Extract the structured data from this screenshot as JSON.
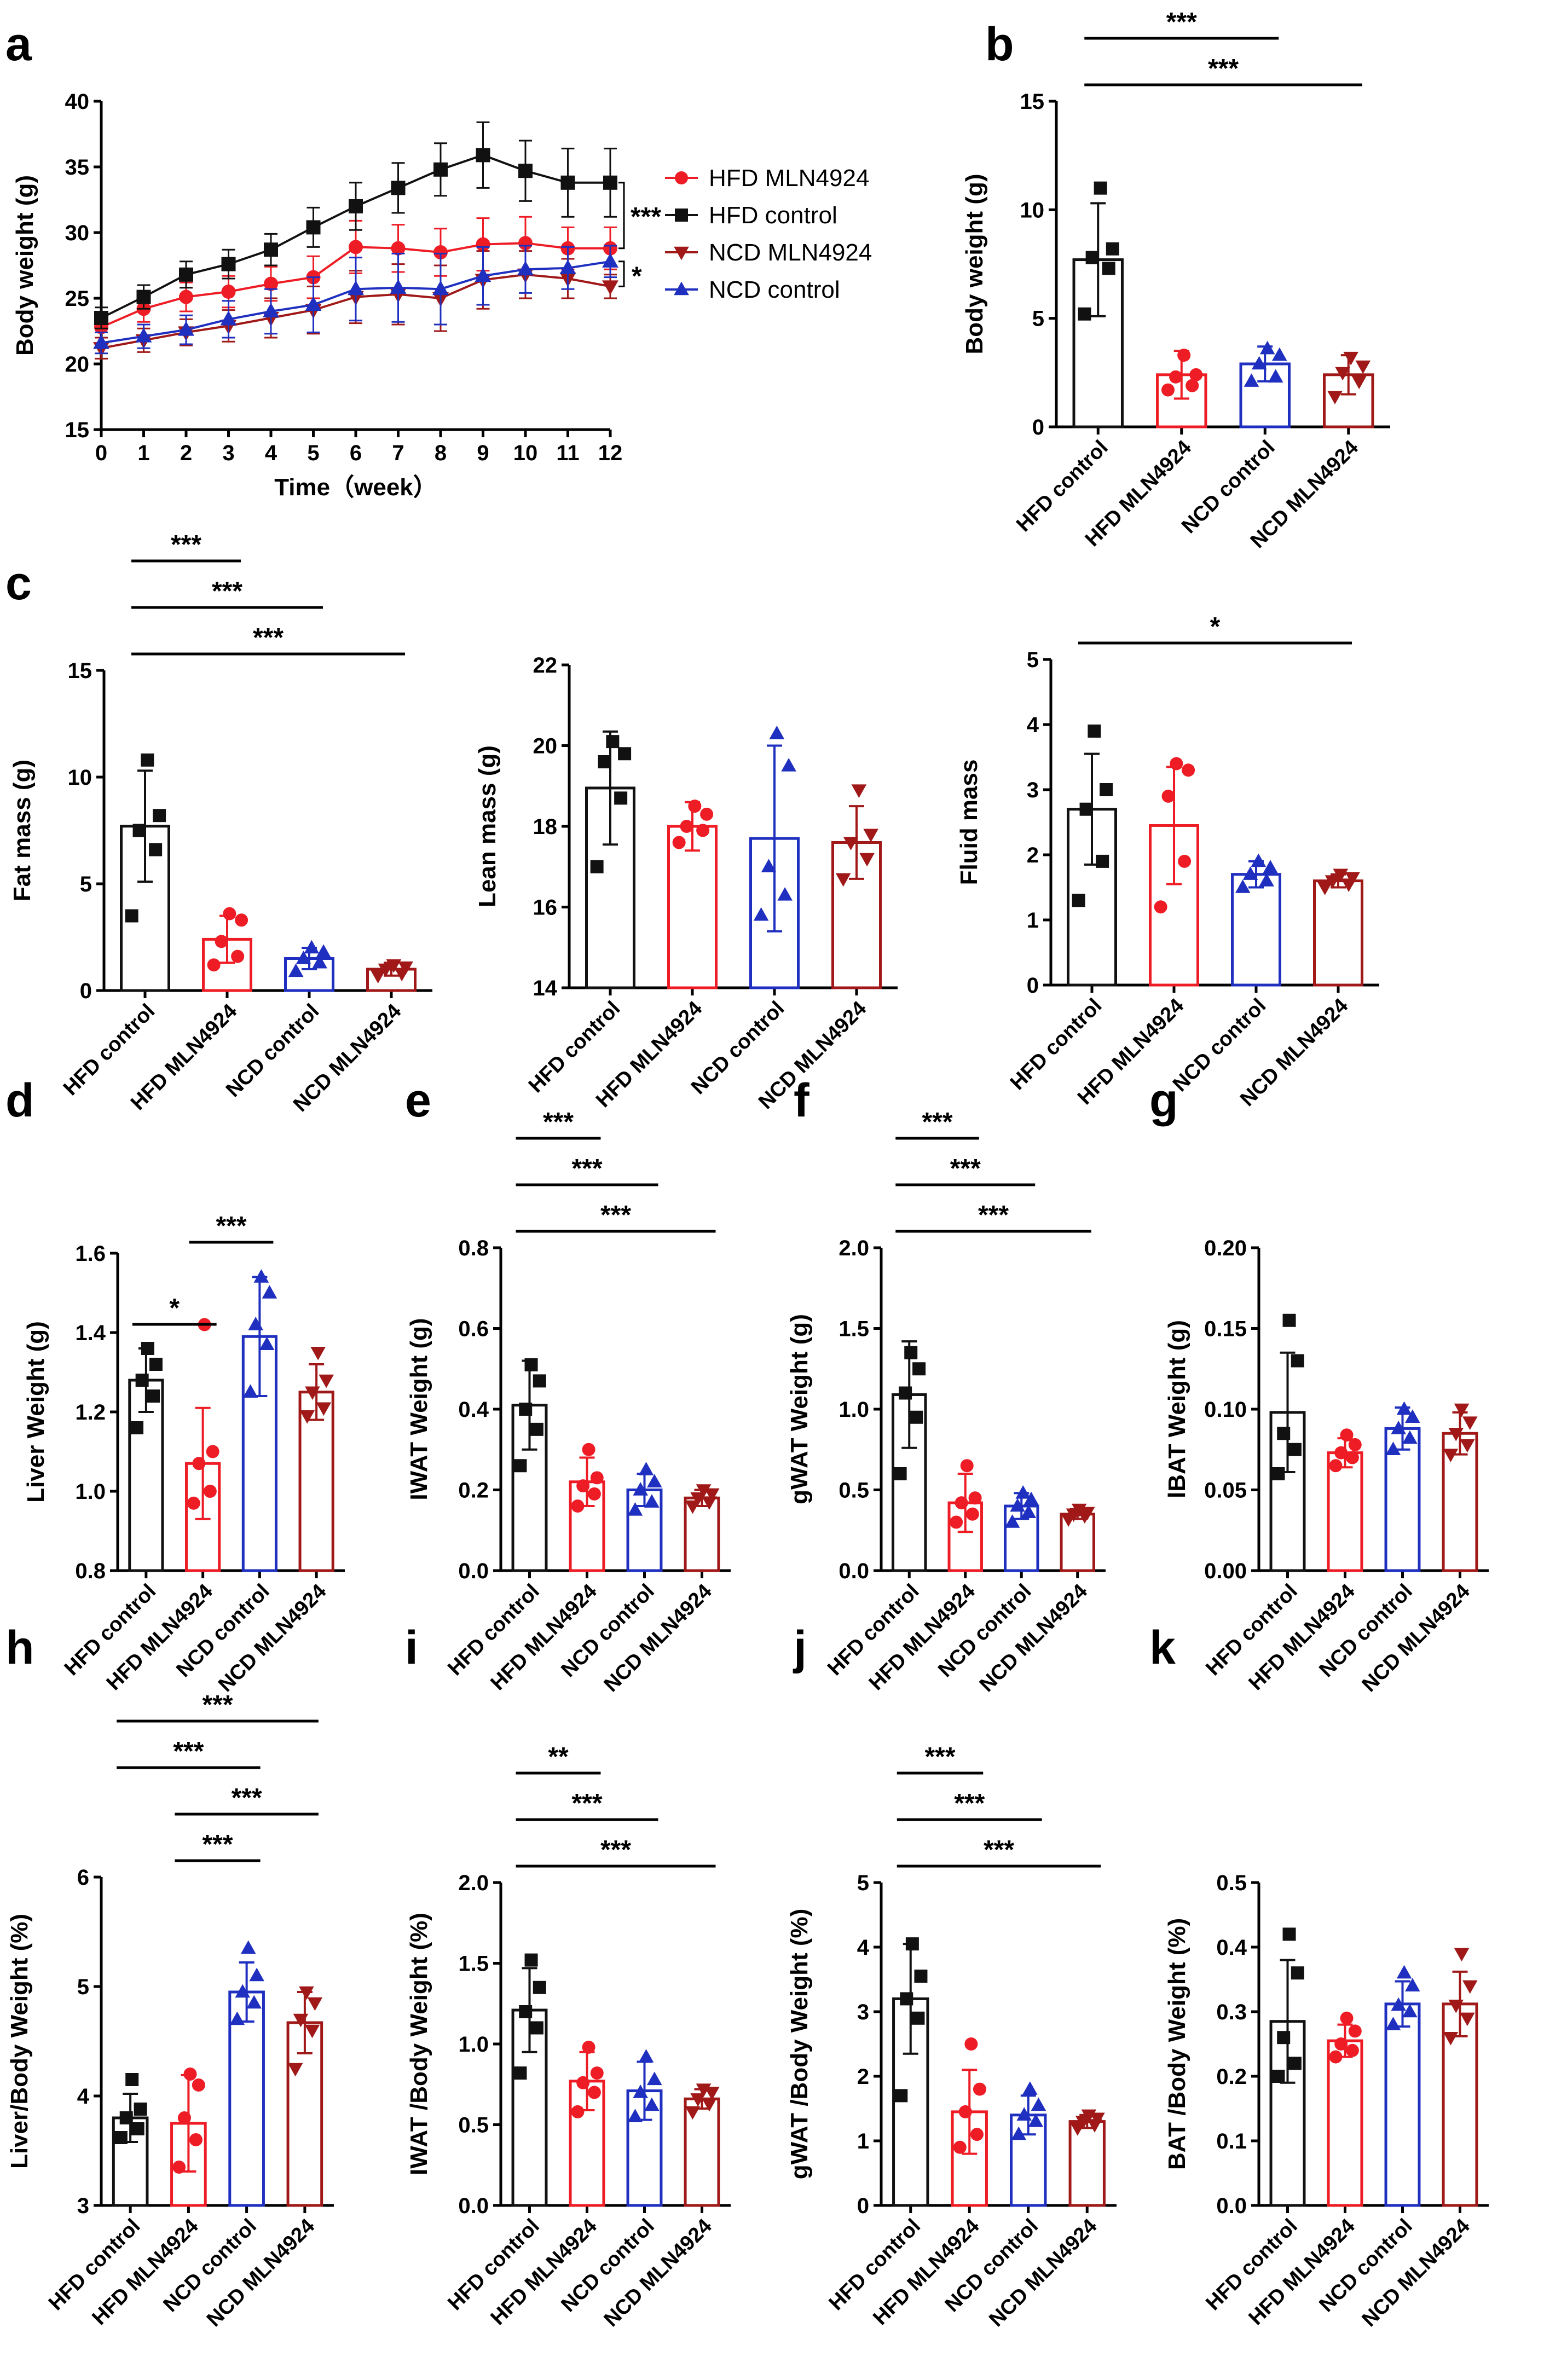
{
  "colors": {
    "HFD control": "#111111",
    "HFD MLN4924": "#ee1c25",
    "NCD control": "#1f2fbf",
    "NCD MLN4924": "#a01818"
  },
  "chart_data": [
    {
      "panel": "a",
      "type": "line",
      "xlabel": "Time（week）",
      "ylabel": "Body weight (g)",
      "x": [
        0,
        1,
        2,
        3,
        4,
        5,
        6,
        7,
        8,
        9,
        10,
        11,
        12
      ],
      "xlim": [
        0,
        12
      ],
      "ylim": [
        15,
        40
      ],
      "yticks": [
        15,
        20,
        25,
        30,
        35,
        40
      ],
      "legend_position": "right",
      "series": [
        {
          "name": "HFD MLN4924",
          "marker": "circle",
          "values": [
            22.8,
            24.2,
            25.1,
            25.5,
            26.1,
            26.6,
            28.9,
            28.8,
            28.5,
            29.1,
            29.2,
            28.8,
            28.8
          ],
          "err": [
            0.8,
            1.0,
            1.1,
            1.2,
            1.3,
            1.6,
            2.0,
            1.8,
            1.8,
            2.0,
            2.0,
            1.6,
            1.6
          ]
        },
        {
          "name": "HFD control",
          "marker": "square",
          "values": [
            23.5,
            25.1,
            26.8,
            27.6,
            28.7,
            30.4,
            32.0,
            33.4,
            34.8,
            35.9,
            34.7,
            33.8,
            33.8
          ],
          "err": [
            0.8,
            0.9,
            1.0,
            1.1,
            1.2,
            1.5,
            1.8,
            1.9,
            2.0,
            2.5,
            2.3,
            2.6,
            2.6
          ]
        },
        {
          "name": "NCD MLN4924",
          "marker": "triangle-down",
          "values": [
            21.2,
            21.8,
            22.4,
            22.9,
            23.5,
            24.1,
            25.1,
            25.3,
            25.0,
            26.4,
            26.8,
            26.5,
            25.9
          ],
          "err": [
            0.8,
            0.9,
            1.0,
            1.2,
            1.5,
            1.8,
            2.0,
            2.3,
            2.5,
            2.2,
            1.8,
            1.5,
            0.9
          ]
        },
        {
          "name": "NCD control",
          "marker": "triangle-up",
          "values": [
            21.6,
            22.1,
            22.6,
            23.4,
            24.0,
            24.5,
            25.7,
            25.8,
            25.7,
            26.7,
            27.2,
            27.3,
            27.8
          ],
          "err": [
            0.8,
            0.9,
            1.1,
            1.4,
            1.7,
            2.1,
            2.4,
            2.6,
            2.7,
            2.2,
            1.8,
            1.6,
            1.2
          ]
        }
      ],
      "annotations": [
        "***",
        "*"
      ]
    },
    {
      "panel": "b",
      "type": "bar",
      "ylabel": "Body weight (g)",
      "categories": [
        "HFD control",
        "HFD MLN4924",
        "NCD control",
        "NCD MLN4924"
      ],
      "ylim": [
        0,
        15
      ],
      "yticks": [
        0,
        5,
        10,
        15
      ],
      "values": [
        7.7,
        2.4,
        2.9,
        2.4
      ],
      "err": [
        2.6,
        1.1,
        0.8,
        0.9
      ],
      "points": [
        [
          5.2,
          7.3,
          7.8,
          8.2,
          11.0
        ],
        [
          1.7,
          1.9,
          2.3,
          2.4,
          3.3
        ],
        [
          2.1,
          2.3,
          2.9,
          3.3,
          3.6
        ],
        [
          1.4,
          2.1,
          2.5,
          2.8,
          3.2
        ]
      ],
      "significance": [
        {
          "pair": [
            0,
            1
          ],
          "label": "***"
        },
        {
          "pair": [
            0,
            2
          ],
          "label": "***"
        },
        {
          "pair": [
            0,
            3
          ],
          "label": "***"
        }
      ]
    },
    {
      "panel": "c1",
      "type": "bar",
      "ylabel": "Fat mass (g)",
      "categories": [
        "HFD control",
        "HFD MLN4924",
        "NCD control",
        "NCD MLN4924"
      ],
      "ylim": [
        0,
        15
      ],
      "yticks": [
        0,
        5,
        10,
        15
      ],
      "values": [
        7.7,
        2.4,
        1.5,
        1.0
      ],
      "err": [
        2.6,
        1.1,
        0.5,
        0.3
      ],
      "points": [
        [
          3.5,
          6.6,
          7.5,
          8.2,
          10.8
        ],
        [
          1.2,
          1.6,
          2.3,
          3.3,
          3.6
        ],
        [
          0.9,
          1.3,
          1.5,
          1.8,
          2.0
        ],
        [
          0.7,
          0.8,
          1.0,
          1.1,
          1.2
        ]
      ],
      "significance": [
        {
          "pair": [
            0,
            1
          ],
          "label": "***"
        },
        {
          "pair": [
            0,
            2
          ],
          "label": "***"
        },
        {
          "pair": [
            0,
            3
          ],
          "label": "***"
        }
      ]
    },
    {
      "panel": "c2",
      "type": "bar",
      "ylabel": "Lean mass (g)",
      "categories": [
        "HFD control",
        "HFD MLN4924",
        "NCD control",
        "NCD MLN4924"
      ],
      "ylim": [
        14,
        22
      ],
      "yticks": [
        14,
        16,
        18,
        20,
        22
      ],
      "values": [
        18.95,
        18.0,
        17.7,
        17.6
      ],
      "err": [
        1.4,
        0.6,
        2.3,
        0.9
      ],
      "points": [
        [
          17.0,
          18.7,
          19.6,
          19.8,
          20.1
        ],
        [
          17.6,
          17.9,
          18.0,
          18.3,
          18.5
        ],
        [
          15.8,
          16.3,
          17.0,
          19.5,
          20.3
        ],
        [
          16.7,
          17.2,
          17.6,
          17.8,
          18.9
        ]
      ],
      "significance": []
    },
    {
      "panel": "c3",
      "type": "bar",
      "ylabel": "Fluid mass",
      "categories": [
        "HFD control",
        "HFD MLN4924",
        "NCD control",
        "NCD MLN4924"
      ],
      "ylim": [
        0,
        5
      ],
      "yticks": [
        0,
        1,
        2,
        3,
        4,
        5
      ],
      "values": [
        2.7,
        2.45,
        1.7,
        1.6
      ],
      "err": [
        0.85,
        0.9,
        0.2,
        0.1
      ],
      "points": [
        [
          1.3,
          1.9,
          2.7,
          3.0,
          3.9
        ],
        [
          1.2,
          1.9,
          2.9,
          3.3,
          3.4
        ],
        [
          1.5,
          1.6,
          1.7,
          1.8,
          1.9
        ],
        [
          1.5,
          1.55,
          1.6,
          1.65,
          1.7
        ]
      ],
      "significance": [
        {
          "pair": [
            0,
            3
          ],
          "label": "*"
        }
      ]
    },
    {
      "panel": "d",
      "type": "bar",
      "ylabel": "Liver Weight (g)",
      "categories": [
        "HFD control",
        "HFD MLN4924",
        "NCD control",
        "NCD MLN4924"
      ],
      "ylim": [
        0.8,
        1.6
      ],
      "yticks": [
        0.8,
        1.0,
        1.2,
        1.4,
        1.6
      ],
      "values": [
        1.28,
        1.07,
        1.39,
        1.25
      ],
      "err": [
        0.08,
        0.14,
        0.15,
        0.07
      ],
      "points": [
        [
          1.16,
          1.24,
          1.28,
          1.32,
          1.36
        ],
        [
          0.97,
          1.0,
          1.07,
          1.1,
          1.42
        ],
        [
          1.25,
          1.37,
          1.42,
          1.5,
          1.54
        ],
        [
          1.19,
          1.21,
          1.25,
          1.28,
          1.35
        ]
      ],
      "significance": [
        {
          "pair": [
            0,
            1
          ],
          "label": "*"
        },
        {
          "pair": [
            1,
            2
          ],
          "label": "***"
        }
      ]
    },
    {
      "panel": "e",
      "type": "bar",
      "ylabel": "IWAT Weight (g)",
      "categories": [
        "HFD control",
        "HFD MLN4924",
        "NCD control",
        "NCD MLN4924"
      ],
      "ylim": [
        0,
        0.8
      ],
      "yticks": [
        0.0,
        0.2,
        0.4,
        0.6,
        0.8
      ],
      "values": [
        0.41,
        0.22,
        0.2,
        0.18
      ],
      "err": [
        0.11,
        0.06,
        0.04,
        0.02
      ],
      "points": [
        [
          0.26,
          0.35,
          0.4,
          0.47,
          0.51
        ],
        [
          0.16,
          0.19,
          0.21,
          0.23,
          0.3
        ],
        [
          0.15,
          0.17,
          0.2,
          0.22,
          0.25
        ],
        [
          0.16,
          0.17,
          0.18,
          0.19,
          0.2
        ]
      ],
      "significance": [
        {
          "pair": [
            0,
            1
          ],
          "label": "***"
        },
        {
          "pair": [
            0,
            2
          ],
          "label": "***"
        },
        {
          "pair": [
            0,
            3
          ],
          "label": "***"
        }
      ]
    },
    {
      "panel": "f",
      "type": "bar",
      "ylabel": "gWAT Weight (g)",
      "categories": [
        "HFD control",
        "HFD MLN4924",
        "NCD control",
        "NCD MLN4924"
      ],
      "ylim": [
        0,
        2.0
      ],
      "yticks": [
        0.0,
        0.5,
        1.0,
        1.5,
        2.0
      ],
      "values": [
        1.09,
        0.42,
        0.4,
        0.35
      ],
      "err": [
        0.33,
        0.18,
        0.08,
        0.03
      ],
      "points": [
        [
          0.6,
          0.95,
          1.1,
          1.25,
          1.35
        ],
        [
          0.3,
          0.35,
          0.42,
          0.45,
          0.65
        ],
        [
          0.3,
          0.36,
          0.4,
          0.44,
          0.48
        ],
        [
          0.32,
          0.34,
          0.35,
          0.36,
          0.38
        ]
      ],
      "significance": [
        {
          "pair": [
            0,
            1
          ],
          "label": "***"
        },
        {
          "pair": [
            0,
            2
          ],
          "label": "***"
        },
        {
          "pair": [
            0,
            3
          ],
          "label": "***"
        }
      ]
    },
    {
      "panel": "g",
      "type": "bar",
      "ylabel": "lBAT Weight (g)",
      "categories": [
        "HFD control",
        "HFD MLN4924",
        "NCD control",
        "NCD MLN4924"
      ],
      "ylim": [
        0,
        0.2
      ],
      "yticks": [
        0.0,
        0.05,
        0.1,
        0.15,
        0.2
      ],
      "values": [
        0.098,
        0.073,
        0.088,
        0.085
      ],
      "err": [
        0.037,
        0.009,
        0.013,
        0.013
      ],
      "points": [
        [
          0.06,
          0.075,
          0.085,
          0.13,
          0.155
        ],
        [
          0.065,
          0.07,
          0.073,
          0.078,
          0.084
        ],
        [
          0.075,
          0.082,
          0.088,
          0.095,
          0.1
        ],
        [
          0.072,
          0.078,
          0.085,
          0.092,
          0.1
        ]
      ],
      "significance": []
    },
    {
      "panel": "h",
      "type": "bar",
      "ylabel": "Liver/Body Weight (%)",
      "categories": [
        "HFD control",
        "HFD MLN4924",
        "NCD control",
        "NCD MLN4924"
      ],
      "ylim": [
        3,
        6
      ],
      "yticks": [
        3,
        4,
        5,
        6
      ],
      "values": [
        3.8,
        3.75,
        4.95,
        4.67
      ],
      "err": [
        0.22,
        0.44,
        0.27,
        0.28
      ],
      "points": [
        [
          3.62,
          3.7,
          3.8,
          3.88,
          4.15
        ],
        [
          3.35,
          3.6,
          3.8,
          4.1,
          4.2
        ],
        [
          4.7,
          4.85,
          4.95,
          5.1,
          5.35
        ],
        [
          4.25,
          4.6,
          4.7,
          4.85,
          4.95
        ]
      ],
      "significance": [
        {
          "pair": [
            0,
            3
          ],
          "label": "***"
        },
        {
          "pair": [
            0,
            2
          ],
          "label": "***"
        },
        {
          "pair": [
            1,
            3
          ],
          "label": "***"
        },
        {
          "pair": [
            1,
            2
          ],
          "label": "***"
        }
      ]
    },
    {
      "panel": "i",
      "type": "bar",
      "ylabel": "IWAT /Body Weight (%)",
      "categories": [
        "HFD control",
        "HFD MLN4924",
        "NCD control",
        "NCD MLN4924"
      ],
      "ylim": [
        0,
        2.0
      ],
      "yticks": [
        0.0,
        0.5,
        1.0,
        1.5,
        2.0
      ],
      "values": [
        1.21,
        0.77,
        0.71,
        0.66
      ],
      "err": [
        0.26,
        0.18,
        0.18,
        0.06
      ],
      "points": [
        [
          0.82,
          1.1,
          1.2,
          1.35,
          1.52
        ],
        [
          0.58,
          0.7,
          0.76,
          0.82,
          0.98
        ],
        [
          0.55,
          0.62,
          0.7,
          0.78,
          0.92
        ],
        [
          0.58,
          0.63,
          0.66,
          0.7,
          0.72
        ]
      ],
      "significance": [
        {
          "pair": [
            0,
            1
          ],
          "label": "**"
        },
        {
          "pair": [
            0,
            2
          ],
          "label": "***"
        },
        {
          "pair": [
            0,
            3
          ],
          "label": "***"
        }
      ]
    },
    {
      "panel": "j",
      "type": "bar",
      "ylabel": "gWAT /Body Weight (%)",
      "categories": [
        "HFD control",
        "HFD MLN4924",
        "NCD control",
        "NCD MLN4924"
      ],
      "ylim": [
        0,
        5
      ],
      "yticks": [
        0,
        1,
        2,
        3,
        4,
        5
      ],
      "values": [
        3.2,
        1.45,
        1.4,
        1.3
      ],
      "err": [
        0.85,
        0.65,
        0.3,
        0.1
      ],
      "points": [
        [
          1.7,
          2.9,
          3.2,
          3.55,
          4.05
        ],
        [
          0.9,
          1.1,
          1.45,
          1.8,
          2.5
        ],
        [
          1.1,
          1.3,
          1.4,
          1.55,
          1.8
        ],
        [
          1.2,
          1.25,
          1.3,
          1.35,
          1.4
        ]
      ],
      "significance": [
        {
          "pair": [
            0,
            1
          ],
          "label": "***"
        },
        {
          "pair": [
            0,
            2
          ],
          "label": "***"
        },
        {
          "pair": [
            0,
            3
          ],
          "label": "***"
        }
      ]
    },
    {
      "panel": "k",
      "type": "bar",
      "ylabel": "BAT /Body Weight (%)",
      "categories": [
        "HFD control",
        "HFD MLN4924",
        "NCD control",
        "NCD MLN4924"
      ],
      "ylim": [
        0,
        0.5
      ],
      "yticks": [
        0.0,
        0.1,
        0.2,
        0.3,
        0.4,
        0.5
      ],
      "values": [
        0.285,
        0.255,
        0.312,
        0.312
      ],
      "err": [
        0.095,
        0.025,
        0.035,
        0.05
      ],
      "points": [
        [
          0.2,
          0.22,
          0.26,
          0.36,
          0.42
        ],
        [
          0.23,
          0.24,
          0.25,
          0.27,
          0.29
        ],
        [
          0.28,
          0.3,
          0.31,
          0.34,
          0.36
        ],
        [
          0.26,
          0.29,
          0.31,
          0.34,
          0.39
        ]
      ],
      "significance": []
    }
  ]
}
